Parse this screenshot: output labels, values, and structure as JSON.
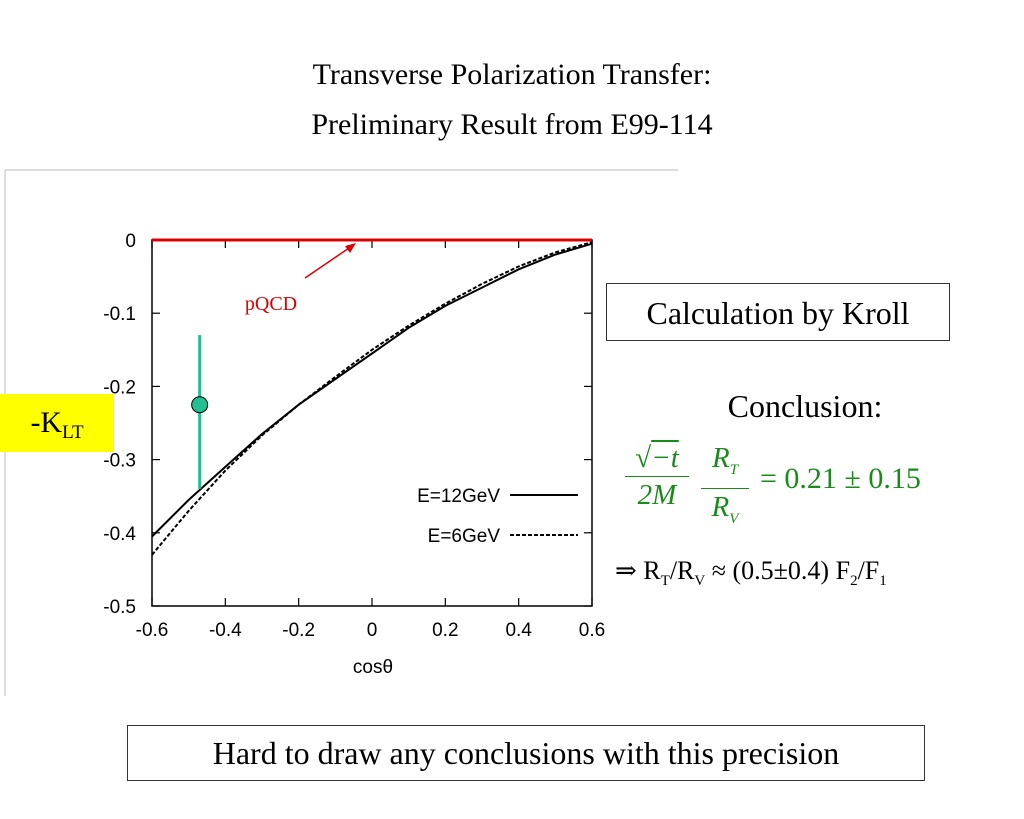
{
  "slide": {
    "title_line1": "Transverse Polarization Transfer:",
    "title_line2": "Preliminary Result from E99-114",
    "ylabel_main": "-K",
    "ylabel_sub": "LT",
    "kroll_label": "Calculation by Kroll",
    "conclusion_head": "Conclusion:",
    "eq_sqrt": "−t",
    "eq_2m": "2M",
    "eq_r": "R",
    "eq_t": "T",
    "eq_v": "V",
    "eq_rhs": "= 0.21 ± 0.15",
    "impl_prefix": "⇒ R",
    "impl_t": "T",
    "impl_slash": "/R",
    "impl_v": "V",
    "impl_mid": " ≈ (0.5±0.4) F",
    "impl_2": "2",
    "impl_slash2": "/F",
    "impl_1": "1",
    "bottom_note": "Hard to draw any conclusions with this precision"
  },
  "chart_data": {
    "type": "line",
    "xlabel": "cosθ",
    "ylabel": "",
    "xlim": [
      -0.6,
      0.6
    ],
    "ylim": [
      -0.5,
      0
    ],
    "xticks": [
      "-0.6",
      "-0.4",
      "-0.2",
      "0",
      "0.2",
      "0.4",
      "0.6"
    ],
    "yticks": [
      "0",
      "-0.1",
      "-0.2",
      "-0.3",
      "-0.4",
      "-0.5"
    ],
    "annotation": "pQCD",
    "legend_position": "bottom-right",
    "series": [
      {
        "name": "pQCD",
        "color": "#dd0000",
        "style": "solid",
        "x": [
          -0.6,
          0.6
        ],
        "y": [
          0,
          0
        ]
      },
      {
        "name": "E=12GeV",
        "color": "#000000",
        "style": "solid",
        "x": [
          -0.6,
          -0.5,
          -0.4,
          -0.3,
          -0.2,
          -0.1,
          0,
          0.1,
          0.2,
          0.3,
          0.4,
          0.5,
          0.6
        ],
        "y": [
          -0.405,
          -0.355,
          -0.31,
          -0.265,
          -0.225,
          -0.19,
          -0.155,
          -0.12,
          -0.09,
          -0.065,
          -0.04,
          -0.02,
          -0.005
        ]
      },
      {
        "name": "E=6GeV",
        "color": "#000000",
        "style": "dashed",
        "x": [
          -0.6,
          -0.5,
          -0.4,
          -0.3,
          -0.2,
          -0.1,
          0,
          0.1,
          0.2,
          0.3,
          0.4,
          0.5,
          0.6
        ],
        "y": [
          -0.43,
          -0.37,
          -0.315,
          -0.267,
          -0.225,
          -0.187,
          -0.15,
          -0.117,
          -0.087,
          -0.06,
          -0.036,
          -0.017,
          -0.003
        ]
      }
    ],
    "points": [
      {
        "x": -0.47,
        "y": -0.225,
        "err_low": -0.34,
        "err_high": -0.13,
        "color": "#20c090"
      }
    ]
  }
}
